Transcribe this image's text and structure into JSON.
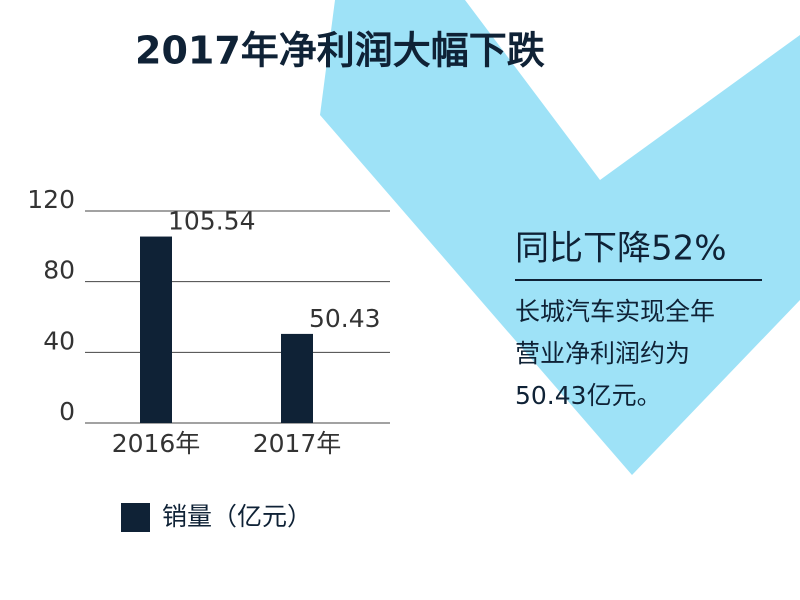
{
  "chart_data": {
    "type": "bar",
    "title": "2017年净利润大幅下跌",
    "categories": [
      "2016年",
      "2017年"
    ],
    "series": [
      {
        "name": "销量（亿元）",
        "color": "#0f2236",
        "values": [
          105.54,
          50.43
        ]
      }
    ],
    "ylim": [
      0,
      120
    ],
    "yticks": [
      0,
      40,
      80,
      120
    ],
    "grid": true,
    "annotations": [
      "同比下降52%",
      "长城汽车实现全年",
      "营业净利润约为",
      "50.43亿元。"
    ]
  }
}
